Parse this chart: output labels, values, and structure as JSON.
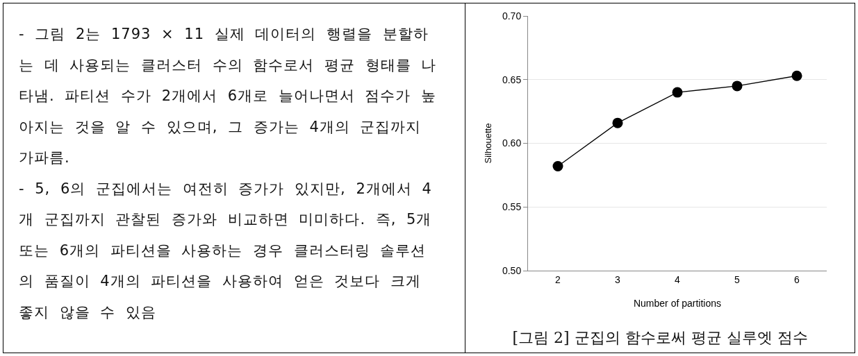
{
  "chart_data": {
    "type": "line",
    "title": "[그림 2] 군집의 함수로써 평균 실루엣 점수",
    "xlabel": "Number of partitions",
    "ylabel": "Silhouette",
    "categories": [
      "2",
      "3",
      "4",
      "5",
      "6"
    ],
    "series": [
      {
        "color": "#000000",
        "values": [
          0.582,
          0.616,
          0.64,
          0.645,
          0.653
        ]
      }
    ],
    "ylim": [
      0.5,
      0.7
    ],
    "yticks": [
      {
        "value": 0.5,
        "label": "0.50"
      },
      {
        "value": 0.55,
        "label": "0.55"
      },
      {
        "value": 0.6,
        "label": "0.60"
      },
      {
        "value": 0.65,
        "label": "0.65"
      },
      {
        "value": 0.7,
        "label": "0.70"
      }
    ],
    "grid": "y",
    "marker": "circle",
    "line_style": "solid",
    "annotations": [
      "- 그림 2는 1793 × 11 실제 데이터의 행렬을 분할하는 데 사용되는 클러스터 수의 함수로서 평균 형태를 나타냄. 파티션 수가 2개에서 6개로 늘어나면서 점수가 높아지는 것을 알 수 있으며, 그 증가는 4개의 군집까지 가파름.",
      "- 5, 6의 군집에서는 여전히 증가가 있지만, 2개에서 4개 군집까지 관찰된 증가와 비교하면 미미하다. 즉, 5개 또는 6개의 파티션을 사용하는 경우 클러스터링 솔루션의 품질이 4개의 파티션을 사용하여 얻은 것보다 크게 좋지 않을 수 있음"
    ]
  }
}
